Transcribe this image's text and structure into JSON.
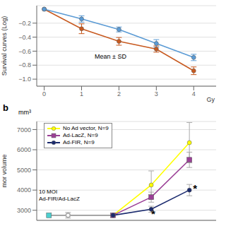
{
  "chart_data": [
    {
      "type": "line",
      "xlabel": "Gy",
      "ylabel": "Survival curves (Log)",
      "xlim": [
        -0.2,
        4.6
      ],
      "ylim": [
        -1.1,
        0.05
      ],
      "xticks": [
        0,
        1,
        2,
        3,
        4
      ],
      "yticks": [
        {
          "value": -1.0,
          "label": "−1.0"
        },
        {
          "value": -0.8,
          "label": "−0.8"
        },
        {
          "value": -0.6,
          "label": "−0.6"
        },
        {
          "value": -0.4,
          "label": "−0.4"
        },
        {
          "value": -0.2,
          "label": "−0.2"
        }
      ],
      "grid": "y",
      "annotations": [
        {
          "text": "Mean ± SD",
          "x": 1.35,
          "y": -0.67
        }
      ],
      "series": [
        {
          "color": "#c85a20",
          "marker": "circle",
          "x": [
            0,
            1,
            2,
            3,
            4
          ],
          "values": [
            0.0,
            -0.28,
            -0.46,
            -0.57,
            -0.88
          ],
          "errors": [
            0.0,
            0.07,
            0.055,
            0.045,
            0.055
          ]
        },
        {
          "color": "#5b9bd5",
          "marker": "circle",
          "x": [
            0,
            1,
            2,
            3,
            4
          ],
          "values": [
            0.0,
            -0.14,
            -0.29,
            -0.49,
            -0.69
          ],
          "errors": [
            0.0,
            0.045,
            0.035,
            0.055,
            0.045
          ]
        }
      ]
    },
    {
      "type": "line",
      "panel_label": "b",
      "ylabel": "mor volume",
      "y_unit": "mm³",
      "xlim": [
        0.0,
        4.7
      ],
      "ylim": [
        2500,
        7400
      ],
      "yticks": [
        3000,
        4000,
        5000,
        6000,
        7000
      ],
      "tick_labels": "y",
      "grid": "y",
      "legend": "upper left",
      "annotations": [
        {
          "text": "10 MOI\nAd-FIR/Ad-LacZ"
        },
        {
          "text": "*",
          "x": 3.05,
          "y": 2820
        },
        {
          "text": "*",
          "x": 4.15,
          "y": 4100
        }
      ],
      "series": [
        {
          "color": "#999999",
          "marker": "none",
          "x": [
            0.32,
            2.0
          ],
          "values": [
            2750,
            2750
          ]
        },
        {
          "color": "#aaaaaa",
          "marker": "none",
          "x": [
            0.82
          ],
          "values": [
            2750
          ],
          "errors": [
            140
          ]
        },
        {
          "type": "scatter",
          "color": "#4dcfcf",
          "marker": "square",
          "x": [
            0.32
          ],
          "values": [
            2750
          ]
        },
        {
          "name": "No Ad vector, N=9",
          "color": "#ffff00",
          "marker": "circle",
          "x": [
            2.0,
            3.0,
            4.0
          ],
          "values": [
            2750,
            4250,
            6350
          ],
          "errors": [
            0,
            700,
            1000
          ]
        },
        {
          "name": "Ad-LacZ, N=9",
          "color": "#9b3f96",
          "marker": "square",
          "x": [
            2.0,
            3.0,
            4.0
          ],
          "values": [
            2750,
            3650,
            5500
          ],
          "errors": [
            0,
            250,
            380
          ]
        },
        {
          "name": "Ad-FIR, N=9",
          "color": "#1a2a6e",
          "marker": "circle",
          "x": [
            2.0,
            3.0,
            4.0
          ],
          "values": [
            2750,
            3050,
            4000
          ],
          "errors": [
            0,
            150,
            280
          ]
        }
      ]
    }
  ]
}
